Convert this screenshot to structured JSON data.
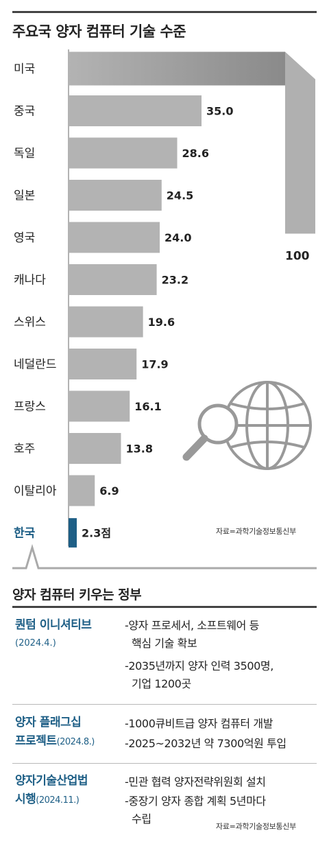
{
  "chart_data": {
    "type": "bar",
    "orientation": "horizontal",
    "title": "주요국 양자 컴퓨터 기술 수준",
    "categories": [
      "미국",
      "중국",
      "독일",
      "일본",
      "영국",
      "캐나다",
      "스위스",
      "네덜란드",
      "프랑스",
      "호주",
      "이탈리아",
      "한국"
    ],
    "values": [
      100,
      35.0,
      28.6,
      24.5,
      24.0,
      23.2,
      19.6,
      17.9,
      16.1,
      13.8,
      6.9,
      2.3
    ],
    "value_labels": [
      "100",
      "35.0",
      "28.6",
      "24.5",
      "24.0",
      "23.2",
      "19.6",
      "17.9",
      "16.1",
      "13.8",
      "6.9",
      "2.3점"
    ],
    "highlight_category": "한국",
    "source": "자료=과학기술정보통신부",
    "colors": {
      "bar": "#b3b3b3",
      "highlight": "#1e5f86",
      "text": "#222222"
    }
  },
  "section2": {
    "title": "양자 컴퓨터 키우는 정부",
    "source": "자료=과학기술정보통신부",
    "policies": [
      {
        "name": "퀀텀 이니셔티브",
        "date": "(2024.4.)",
        "details": [
          {
            "line1": "-양자 프로세서, 소프트웨어 등",
            "line2": "핵심 기술 확보"
          },
          {
            "line1": "-2035년까지 양자 인력 3500명,",
            "line2": "기업 1200곳"
          }
        ]
      },
      {
        "name_line1": "양자 플래그십",
        "name_line2": "프로젝트",
        "date": "(2024.8.)",
        "details": [
          {
            "line1": "-1000큐비트급 양자 컴퓨터 개발"
          },
          {
            "line1": "-2025~2032년 약 7300억원 투입"
          }
        ]
      },
      {
        "name_line1": "양자기술산업법",
        "name_line2": "시행",
        "date": "(2024.11.)",
        "details": [
          {
            "line1": "-민관 협력 양자전략위원회 설치"
          },
          {
            "line1": "-중장기 양자 종합 계획 5년마다",
            "line2": "수립"
          }
        ]
      }
    ]
  }
}
